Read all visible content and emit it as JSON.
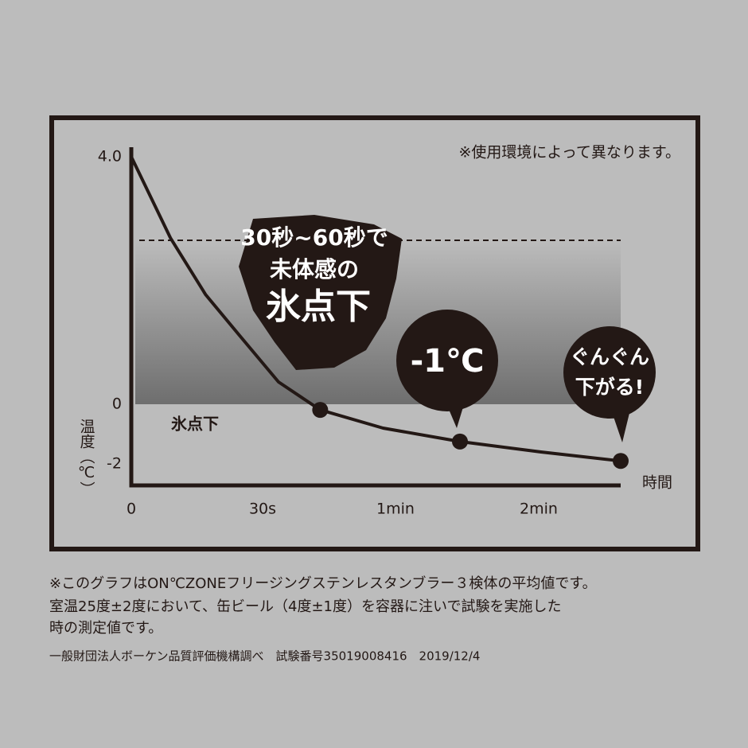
{
  "chart_data": {
    "type": "line",
    "note": "※使用環境によって異なります。",
    "y_label": "温度（℃）",
    "x_label": "時間",
    "band_label": "氷点下",
    "threshold": 2.65,
    "x": [
      0,
      9,
      17,
      24.5,
      33.6,
      43,
      57.2,
      87,
      121,
      155
    ],
    "series": [
      {
        "color": "#231815",
        "values": [
          4.0,
          2.68,
          1.77,
          1.13,
          0.36,
          -0.19,
          -0.8,
          -1.25,
          -1.6,
          -1.9
        ]
      }
    ],
    "markers": {
      "x": [
        43,
        87,
        155
      ],
      "y": [
        -0.19,
        -1.25,
        -1.9
      ]
    },
    "xlim": [
      0,
      155
    ],
    "xticks": [
      0,
      {
        "value": 30,
        "label": "30s"
      },
      {
        "value": 60,
        "label": "1min"
      },
      {
        "value": 120,
        "label": "2min"
      }
    ],
    "ylim": [
      -2.7,
      4.15
    ],
    "yticks": [
      -2,
      0,
      {
        "value": 4,
        "label": "4.0"
      }
    ],
    "grid": false,
    "callouts": {
      "blob": [
        "30秒~60秒で",
        "未体感の",
        "氷点下"
      ],
      "minus_one": "-1℃",
      "dropping": [
        "ぐんぐん",
        "下がる!"
      ]
    }
  },
  "footer": {
    "lines": [
      "※このグラフはON℃ZONEフリージングステンレスタンブラー３検体の平均値です。",
      "室温25度±2度において、缶ビール（4度±1度）を容器に注いで試験を実施した",
      "時の測定値です。",
      "一般財団法人ボーケン品質評価機構調べ　試験番号35019008416　2019/12/4"
    ]
  }
}
